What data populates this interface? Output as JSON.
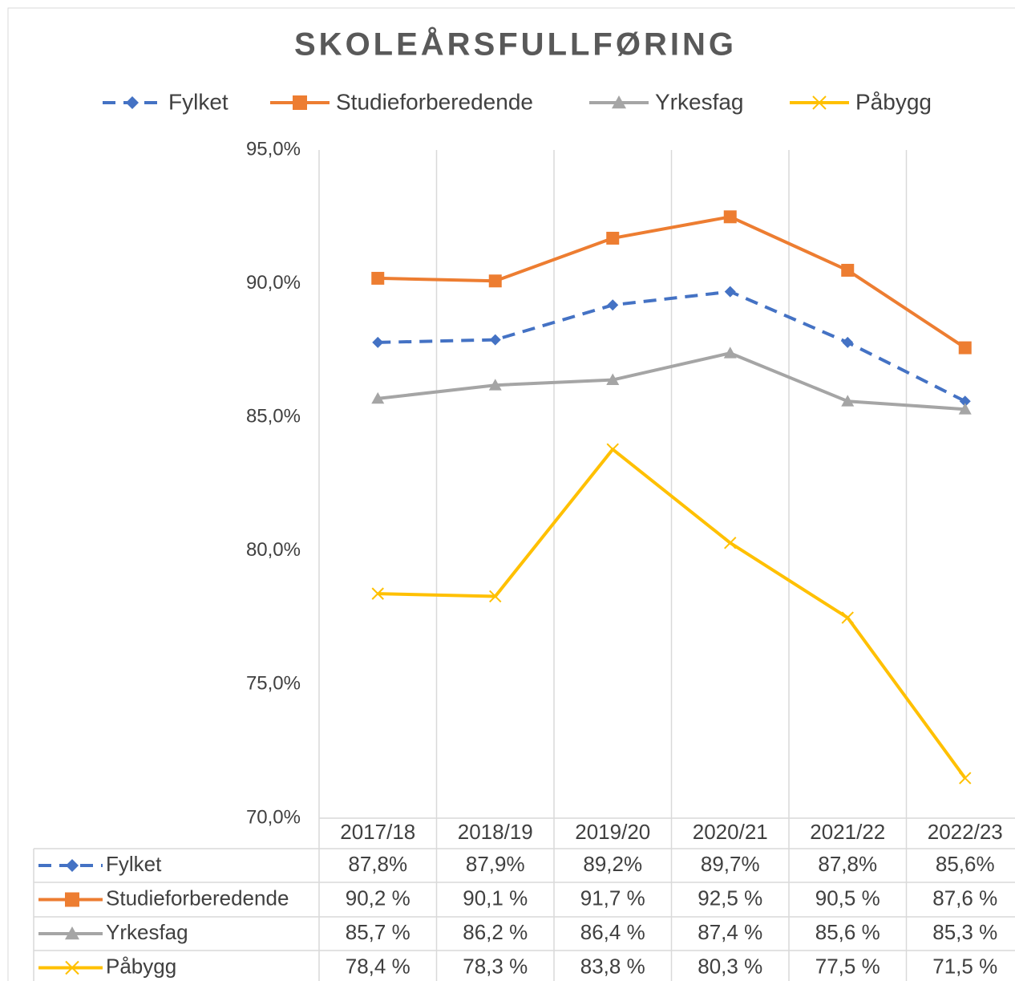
{
  "chart_data": {
    "type": "line",
    "title": "SKOLEÅRSFULLFØRING",
    "categories": [
      "2017/18",
      "2018/19",
      "2019/20",
      "2020/21",
      "2021/22",
      "2022/23"
    ],
    "series": [
      {
        "name": "Fylket",
        "color": "#4472c4",
        "marker": "diamond",
        "dash": true,
        "values": [
          87.8,
          87.9,
          89.2,
          89.7,
          87.8,
          85.6
        ],
        "value_labels": [
          "87,8%",
          "87,9%",
          "89,2%",
          "89,7%",
          "87,8%",
          "85,6%"
        ]
      },
      {
        "name": "Studieforberedende",
        "color": "#ed7d31",
        "marker": "square",
        "dash": false,
        "values": [
          90.2,
          90.1,
          91.7,
          92.5,
          90.5,
          87.6
        ],
        "value_labels": [
          "90,2 %",
          "90,1 %",
          "91,7 %",
          "92,5 %",
          "90,5 %",
          "87,6 %"
        ]
      },
      {
        "name": "Yrkesfag",
        "color": "#a5a5a5",
        "marker": "triangle",
        "dash": false,
        "values": [
          85.7,
          86.2,
          86.4,
          87.4,
          85.6,
          85.3
        ],
        "value_labels": [
          "85,7 %",
          "86,2 %",
          "86,4 %",
          "87,4 %",
          "85,6 %",
          "85,3 %"
        ]
      },
      {
        "name": "Påbygg",
        "color": "#ffc000",
        "marker": "x",
        "dash": false,
        "values": [
          78.4,
          78.3,
          83.8,
          80.3,
          77.5,
          71.5
        ],
        "value_labels": [
          "78,4 %",
          "78,3 %",
          "83,8 %",
          "80,3 %",
          "77,5 %",
          "71,5 %"
        ]
      }
    ],
    "ylim": [
      70,
      95
    ],
    "yticks": [
      {
        "value": 70,
        "label": "70,0%"
      },
      {
        "value": 75,
        "label": "75,0%"
      },
      {
        "value": 80,
        "label": "80,0%"
      },
      {
        "value": 85,
        "label": "85,0%"
      },
      {
        "value": 90,
        "label": "90,0%"
      },
      {
        "value": 95,
        "label": "95,0%"
      }
    ],
    "legend": "top"
  }
}
